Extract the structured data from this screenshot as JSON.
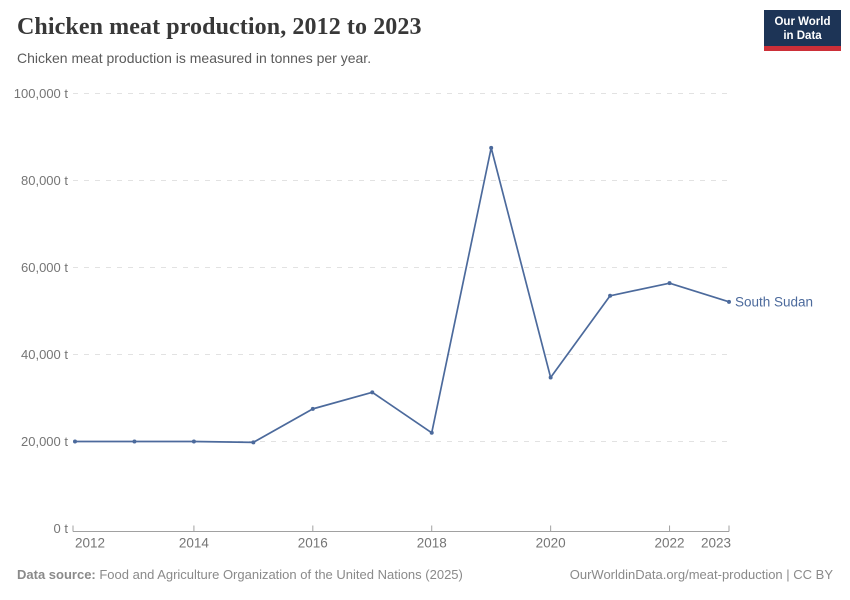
{
  "header": {
    "title": "Chicken meat production, 2012 to 2023",
    "subtitle": "Chicken meat production is measured in tonnes per year.",
    "logo_line1": "Our World",
    "logo_line2": "in Data"
  },
  "chart_data": {
    "type": "line",
    "title": "Chicken meat production, 2012 to 2023",
    "xlabel": "",
    "ylabel": "tonnes per year",
    "xlim": [
      2012,
      2023
    ],
    "ylim": [
      0,
      100000
    ],
    "grid": "horizontal-dashed",
    "legend_position": "end-of-line-label",
    "x": [
      2012,
      2013,
      2014,
      2015,
      2016,
      2017,
      2018,
      2019,
      2020,
      2021,
      2022,
      2023
    ],
    "series": [
      {
        "name": "South Sudan",
        "color": "#4c6a9c",
        "values": [
          20000,
          20000,
          20000,
          19800,
          27500,
          31300,
          22000,
          87500,
          34700,
          53500,
          56400,
          52100
        ]
      }
    ],
    "y_ticks": [
      {
        "value": 0,
        "label": "0 t"
      },
      {
        "value": 20000,
        "label": "20,000 t"
      },
      {
        "value": 40000,
        "label": "40,000 t"
      },
      {
        "value": 60000,
        "label": "60,000 t"
      },
      {
        "value": 80000,
        "label": "80,000 t"
      },
      {
        "value": 100000,
        "label": "100,000 t"
      }
    ],
    "x_ticks": [
      {
        "value": 2012,
        "label": "2012"
      },
      {
        "value": 2014,
        "label": "2014"
      },
      {
        "value": 2016,
        "label": "2016"
      },
      {
        "value": 2018,
        "label": "2018"
      },
      {
        "value": 2020,
        "label": "2020"
      },
      {
        "value": 2022,
        "label": "2022"
      },
      {
        "value": 2023,
        "label": "2023"
      }
    ]
  },
  "colors": {
    "line": "#4c6a9c",
    "grid": "#e2e2e2",
    "axis": "#a1a1a1",
    "tick_text": "#757575",
    "series_label": "#4c6a9c"
  },
  "footer": {
    "source_label": "Data source:",
    "source_text": " Food and Agriculture Organization of the United Nations (2025)",
    "credit": "OurWorldinData.org/meat-production | CC BY"
  }
}
